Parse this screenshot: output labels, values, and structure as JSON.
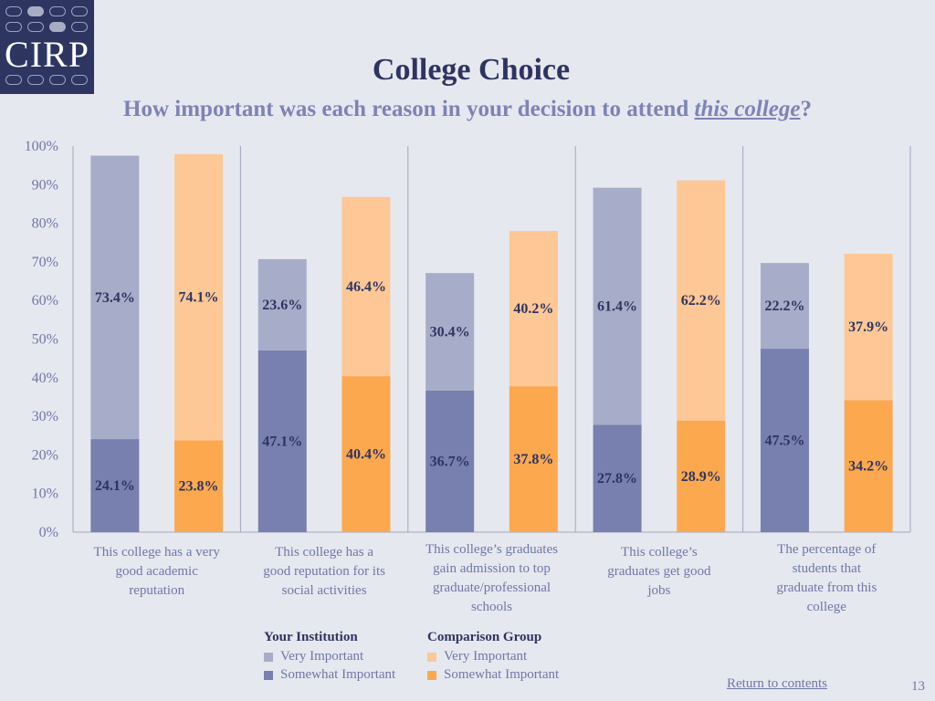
{
  "logo": {
    "text": "CIRP"
  },
  "title": "College Choice",
  "subtitle": {
    "before": "How important was each reason in your decision to attend ",
    "emphasis": "this college",
    "after": "?"
  },
  "chart_data": {
    "type": "bar",
    "stacked": true,
    "y_ticks": [
      "0%",
      "10%",
      "20%",
      "30%",
      "40%",
      "50%",
      "60%",
      "70%",
      "80%",
      "90%",
      "100%"
    ],
    "ylim": [
      0,
      100
    ],
    "grid": false,
    "legend_position": "bottom",
    "categories": [
      [
        "This college has a very",
        "good academic",
        "reputation"
      ],
      [
        "This college has a",
        "good reputation for its",
        "social activities"
      ],
      [
        "This college’s graduates",
        "gain admission to top",
        "graduate/professional",
        "schools"
      ],
      [
        "This college’s",
        "graduates get good",
        "jobs"
      ],
      [
        "The percentage of",
        "students that",
        "graduate from this",
        "college"
      ]
    ],
    "groups": [
      {
        "name": "Your Institution",
        "somewhat": [
          24.1,
          47.1,
          36.7,
          27.8,
          47.5
        ],
        "very": [
          73.4,
          23.6,
          30.4,
          61.4,
          22.2
        ]
      },
      {
        "name": "Comparison Group",
        "somewhat": [
          23.8,
          40.4,
          37.8,
          28.9,
          34.2
        ],
        "very": [
          74.1,
          46.4,
          40.2,
          62.2,
          37.9
        ]
      }
    ],
    "colors": {
      "institution_very": "#a7adc8",
      "institution_somewhat": "#7780ae",
      "comparison_very": "#fdc796",
      "comparison_somewhat": "#fba84f",
      "axis": "#a1a6bd",
      "label": "#2e3461",
      "tick": "#6d77a8"
    }
  },
  "legend": {
    "your_institution": {
      "header": "Your Institution",
      "very": "Very Important",
      "somewhat": "Somewhat Important"
    },
    "comparison_group": {
      "header": "Comparison Group",
      "very": "Very Important",
      "somewhat": "Somewhat Important"
    }
  },
  "footer": {
    "return_link": "Return to contents",
    "page_number": "13"
  }
}
